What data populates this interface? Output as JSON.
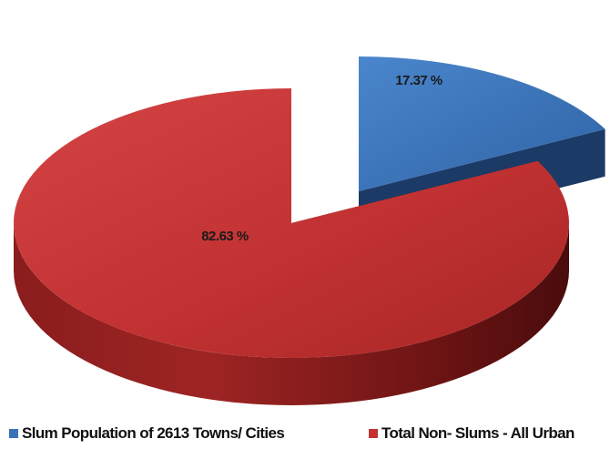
{
  "chart_data": {
    "type": "pie",
    "title": "",
    "style": "3d-exploded",
    "slices": [
      {
        "label": "Slum Population of 2613 Towns/ Cities",
        "value": 17.37,
        "display": "17.37 %",
        "color": "#3a72b8"
      },
      {
        "label": "Total Non- Slums - All Urban",
        "value": 82.63,
        "display": "82.63 %",
        "color": "#c23232"
      }
    ],
    "legend_position": "bottom"
  }
}
